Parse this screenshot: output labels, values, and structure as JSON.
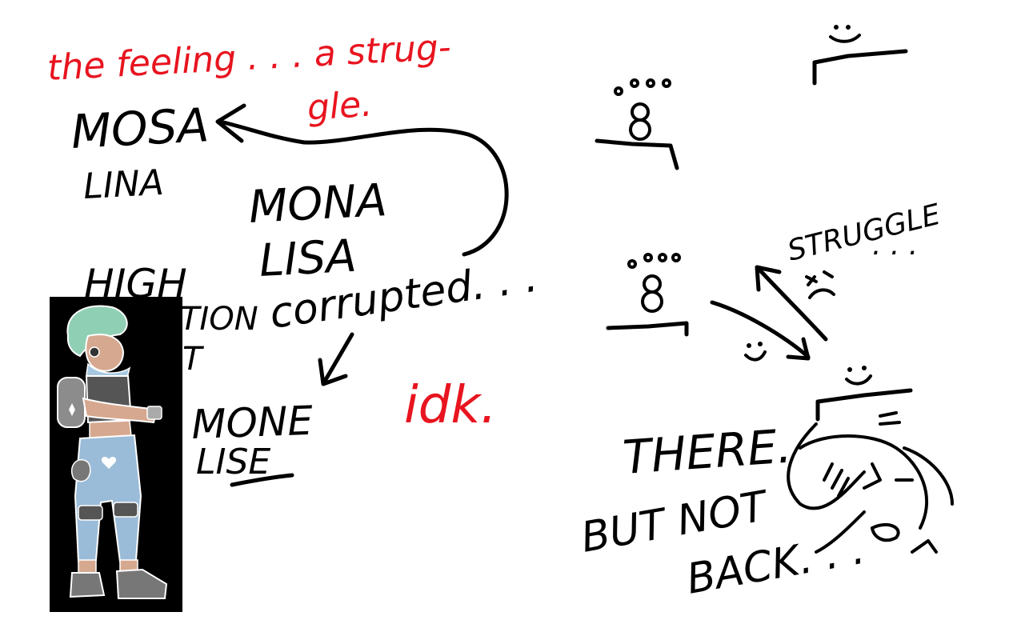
{
  "notes": {
    "feeling_line1": "the feeling . . . a strug-",
    "feeling_line2": "gle.",
    "mosa": "MOSA",
    "lina": "LINA",
    "mona": "MONA",
    "lisa": "LISA",
    "high": "HIGH",
    "tion": "TION",
    "ct": "T",
    "corrupted": "corrupted. . .",
    "mone": "MONE",
    "lise": "LISE",
    "idk": "idk.",
    "struggle": "STRUGGLE",
    "struggle_dots": ". . .",
    "there": "THERE.",
    "but_not": "BUT NOT",
    "back": "BACK. . ."
  },
  "colors": {
    "ink": "#000000",
    "red_ink": "#e8141f",
    "character_bg": "#000000"
  },
  "icons": {
    "face_top": "smiley-face-icon",
    "sad_face": "sad-face-icon",
    "small_face": "smiley-face-icon",
    "bottom_face": "smiley-face-icon"
  }
}
